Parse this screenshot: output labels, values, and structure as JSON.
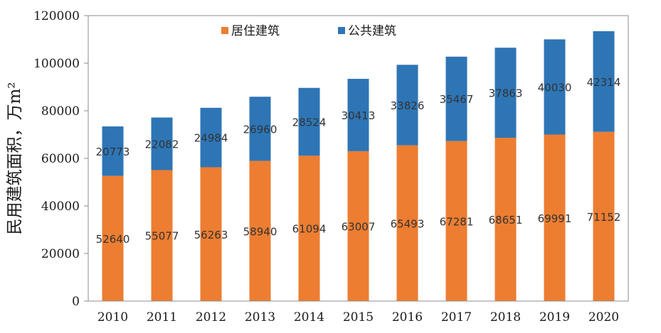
{
  "chart_data": {
    "type": "bar",
    "stacked": true,
    "title": "",
    "xlabel": "",
    "ylabel": "民用建筑面积，万m²",
    "ylim": [
      0,
      120000
    ],
    "yticks": [
      0,
      20000,
      40000,
      60000,
      80000,
      100000,
      120000
    ],
    "categories": [
      "2010",
      "2011",
      "2012",
      "2013",
      "2014",
      "2015",
      "2016",
      "2017",
      "2018",
      "2019",
      "2020"
    ],
    "series": [
      {
        "name": "居住建筑",
        "color": "#ed7d31",
        "values": [
          52640,
          55077,
          56263,
          58940,
          61094,
          63007,
          65493,
          67281,
          68651,
          69991,
          71152
        ]
      },
      {
        "name": "公共建筑",
        "color": "#2e75b6",
        "values": [
          20773,
          22082,
          24984,
          26960,
          28524,
          30413,
          33826,
          35467,
          37863,
          40030,
          42314
        ]
      }
    ],
    "legend_position": "top-center",
    "grid": false
  }
}
